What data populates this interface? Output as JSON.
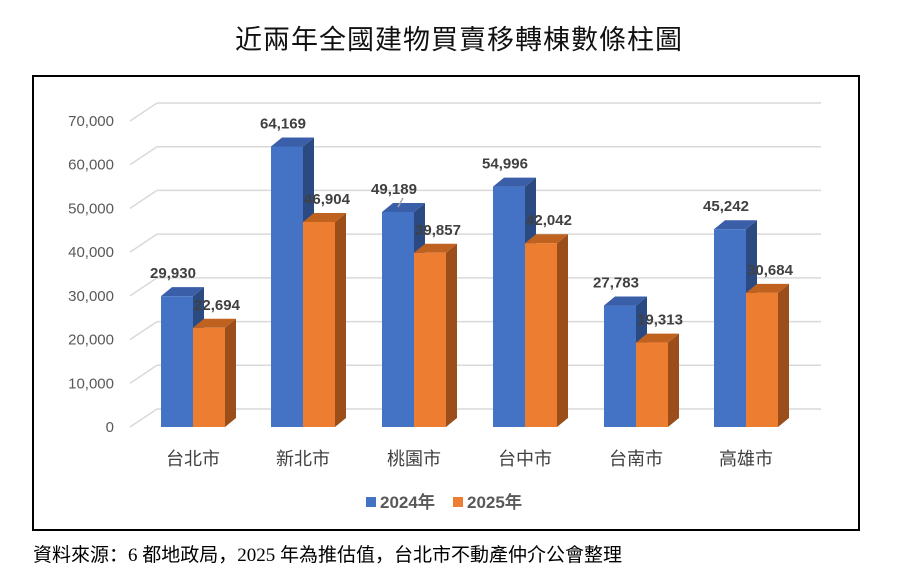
{
  "title": "近兩年全國建物買賣移轉棟數條柱圖",
  "source_note": "資料來源：6 都地政局，2025 年為推估值，台北市不動產仲介公會整理",
  "chart_data": {
    "type": "bar",
    "style": "3d-clustered-column",
    "title": "近兩年全國建物買賣移轉棟數條柱圖",
    "categories": [
      "台北市",
      "新北市",
      "桃園市",
      "台中市",
      "台南市",
      "高雄市"
    ],
    "series": [
      {
        "name": "2024年",
        "color": "#4472C4",
        "values": [
          29930,
          64169,
          49189,
          54996,
          27783,
          45242
        ],
        "labels": [
          "29,930",
          "64,169",
          "49,189",
          "54,996",
          "27,783",
          "45,242"
        ]
      },
      {
        "name": "2025年",
        "color": "#ED7D31",
        "values": [
          22694,
          46904,
          39857,
          42042,
          19313,
          30684
        ],
        "labels": [
          "22,694",
          "46,904",
          "39,857",
          "42,042",
          "19,313",
          "30,684"
        ]
      }
    ],
    "xlabel": "",
    "ylabel": "",
    "ylim": [
      0,
      70000
    ],
    "yticks": [
      0,
      10000,
      20000,
      30000,
      40000,
      50000,
      60000,
      70000
    ],
    "ytick_labels": [
      "0",
      "10,000",
      "20,000",
      "30,000",
      "40,000",
      "50,000",
      "60,000",
      "70,000"
    ],
    "grid": true,
    "legend_position": "bottom",
    "data_labels": true
  },
  "legend": [
    {
      "label": "2024年",
      "color": "#4472C4"
    },
    {
      "label": "2025年",
      "color": "#ED7D31"
    }
  ]
}
